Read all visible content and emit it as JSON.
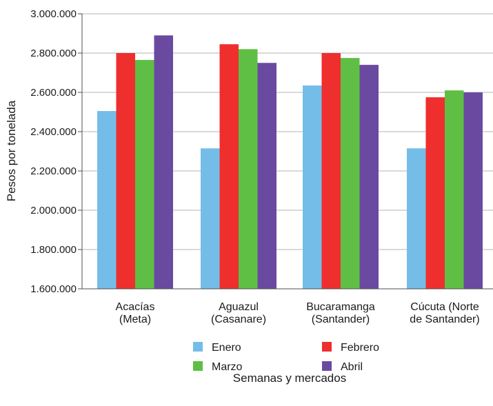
{
  "chart_data": {
    "type": "bar",
    "title": "",
    "xlabel": "Semanas y mercados",
    "ylabel": "Pesos por tonelada",
    "ylim": [
      1600000,
      3000000
    ],
    "yticks": [
      1600000,
      1800000,
      2000000,
      2200000,
      2400000,
      2600000,
      2800000,
      3000000
    ],
    "ytick_labels": [
      "1.600.000",
      "1.800.000",
      "2.000.000",
      "2.200.000",
      "2.400.000",
      "2.600.000",
      "2.800.000",
      "3.000.000"
    ],
    "categories": [
      [
        "Acacías",
        "(Meta)"
      ],
      [
        "Aguazul",
        "(Casanare)"
      ],
      [
        "Bucaramanga",
        "(Santander)"
      ],
      [
        "Cúcuta (Norte",
        "de Santander)"
      ]
    ],
    "series": [
      {
        "name": "Enero",
        "color": "#74bde8",
        "values": [
          2505000,
          2315000,
          2635000,
          2315000
        ]
      },
      {
        "name": "Febrero",
        "color": "#ef2e2e",
        "values": [
          2800000,
          2845000,
          2800000,
          2575000
        ]
      },
      {
        "name": "Marzo",
        "color": "#5fbf45",
        "values": [
          2765000,
          2820000,
          2775000,
          2610000
        ]
      },
      {
        "name": "Abril",
        "color": "#6a4aa0",
        "values": [
          2890000,
          2750000,
          2740000,
          2600000
        ]
      }
    ],
    "grid": true,
    "legend_position": "bottom"
  }
}
